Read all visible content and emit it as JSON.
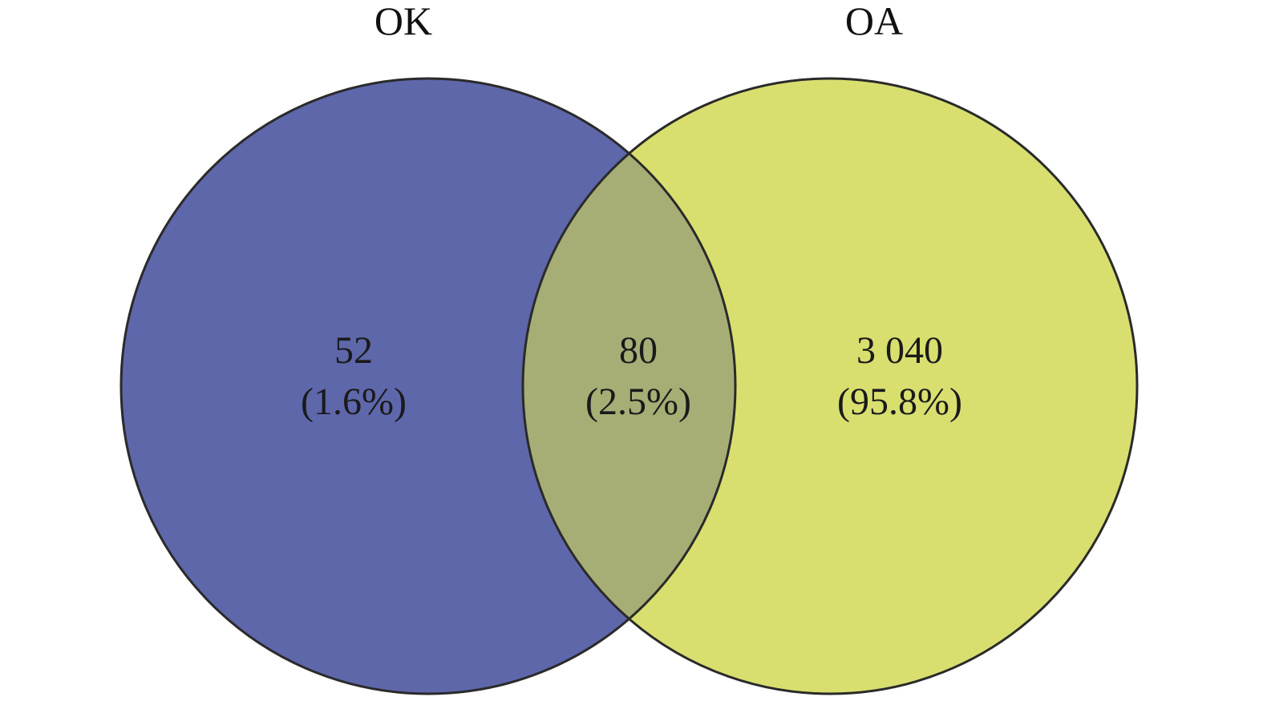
{
  "sets": [
    {
      "name": "OK",
      "color": "#5e67aa"
    },
    {
      "name": "OA",
      "color": "#d9df6f"
    }
  ],
  "regions": {
    "ok_only": {
      "count": "52",
      "percent": "(1.6%)"
    },
    "overlap": {
      "count": "80",
      "percent": "(2.5%)",
      "color": "#a6ae76"
    },
    "oa_only": {
      "count": "3 040",
      "percent": "(95.8%)"
    }
  },
  "outline_color": "#2a2a2a"
}
